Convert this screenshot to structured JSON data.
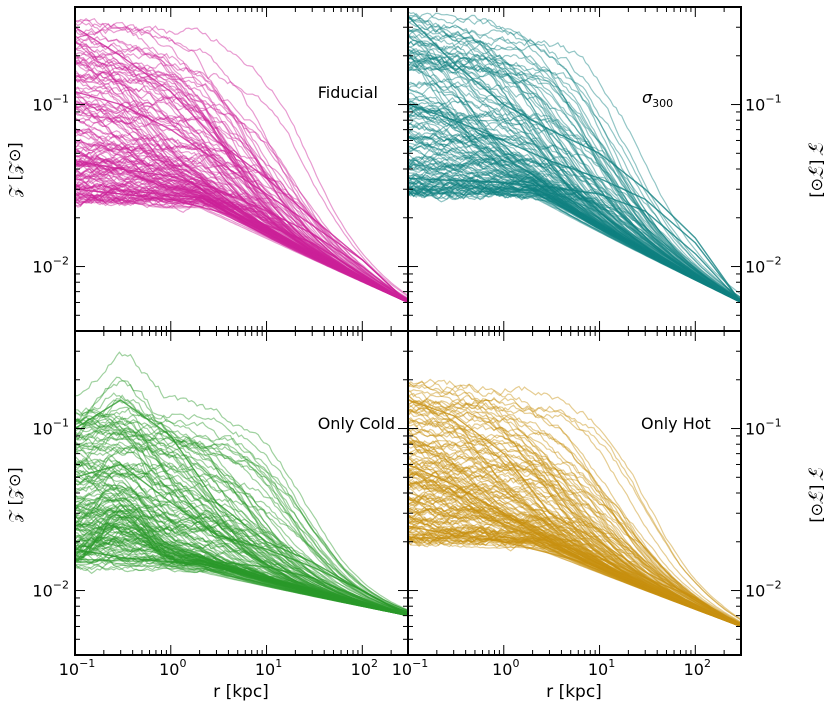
{
  "figure": {
    "xlabel": "r [kpc]",
    "ylabel_left": "𝒵 [𝒵⊙]",
    "ylabel_right": "𝒵 [𝒵⊙]"
  },
  "x_ticks": [
    {
      "base": "10",
      "exp": "−1",
      "value": 0.1
    },
    {
      "base": "10",
      "exp": "0",
      "value": 1
    },
    {
      "base": "10",
      "exp": "1",
      "value": 10
    },
    {
      "base": "10",
      "exp": "2",
      "value": 100
    }
  ],
  "y_ticks": [
    {
      "base": "10",
      "exp": "−1",
      "value": 0.1
    },
    {
      "base": "10",
      "exp": "−2",
      "value": 0.01
    }
  ],
  "chart_data": [
    {
      "type": "line",
      "panel": "top-left",
      "label": "Fiducial",
      "color": "#cc2199",
      "xscale": "log",
      "yscale": "log",
      "xlim": [
        0.1,
        300
      ],
      "ylim": [
        0.004,
        0.4
      ],
      "n_profiles": 150,
      "inner_range": [
        0.025,
        0.35
      ],
      "outer_value_at_300kpc": 0.006,
      "series": [
        {
          "x": [
            0.1,
            0.3,
            1,
            3,
            10,
            30,
            100,
            300
          ],
          "y": [
            0.3,
            0.2,
            0.12,
            0.06,
            0.035,
            0.02,
            0.011,
            0.006
          ]
        },
        {
          "x": [
            0.1,
            0.3,
            1,
            3,
            10,
            30,
            100,
            300
          ],
          "y": [
            0.12,
            0.1,
            0.07,
            0.045,
            0.028,
            0.018,
            0.011,
            0.006
          ]
        },
        {
          "x": [
            0.1,
            0.3,
            1,
            3,
            10,
            30,
            100,
            300
          ],
          "y": [
            0.045,
            0.04,
            0.036,
            0.03,
            0.022,
            0.016,
            0.01,
            0.006
          ]
        },
        {
          "x": [
            0.1,
            0.3,
            1,
            3,
            10,
            30,
            100,
            300
          ],
          "y": [
            0.03,
            0.028,
            0.026,
            0.022,
            0.018,
            0.014,
            0.009,
            0.006
          ]
        }
      ]
    },
    {
      "type": "line",
      "panel": "top-right",
      "label": "σ",
      "label_sub": "300",
      "color": "#0f8080",
      "xscale": "log",
      "yscale": "log",
      "xlim": [
        0.1,
        300
      ],
      "ylim": [
        0.004,
        0.4
      ],
      "n_profiles": 150,
      "inner_range": [
        0.028,
        0.4
      ],
      "outer_value_at_300kpc": 0.006,
      "series": [
        {
          "x": [
            0.1,
            0.3,
            1,
            3,
            10,
            30,
            100,
            300
          ],
          "y": [
            0.35,
            0.18,
            0.1,
            0.07,
            0.05,
            0.03,
            0.015,
            0.006
          ]
        },
        {
          "x": [
            0.1,
            0.3,
            1,
            3,
            10,
            30,
            100,
            300
          ],
          "y": [
            0.1,
            0.08,
            0.06,
            0.045,
            0.035,
            0.026,
            0.014,
            0.006
          ]
        },
        {
          "x": [
            0.1,
            0.3,
            1,
            3,
            10,
            30,
            100,
            300
          ],
          "y": [
            0.035,
            0.034,
            0.033,
            0.031,
            0.028,
            0.022,
            0.012,
            0.006
          ]
        }
      ]
    },
    {
      "type": "line",
      "panel": "bottom-left",
      "label": "Only Cold",
      "color": "#2a9a2a",
      "xscale": "log",
      "yscale": "log",
      "xlim": [
        0.1,
        300
      ],
      "ylim": [
        0.004,
        0.4
      ],
      "n_profiles": 150,
      "inner_range": [
        0.014,
        0.15
      ],
      "outer_value_at_300kpc": 0.007,
      "series": [
        {
          "x": [
            0.1,
            0.3,
            1,
            3,
            10,
            30,
            100,
            300
          ],
          "y": [
            0.1,
            0.15,
            0.09,
            0.035,
            0.02,
            0.015,
            0.01,
            0.007
          ]
        },
        {
          "x": [
            0.1,
            0.3,
            1,
            3,
            10,
            30,
            100,
            300
          ],
          "y": [
            0.05,
            0.06,
            0.035,
            0.022,
            0.018,
            0.014,
            0.01,
            0.007
          ]
        },
        {
          "x": [
            0.1,
            0.3,
            1,
            3,
            10,
            30,
            100,
            300
          ],
          "y": [
            0.018,
            0.016,
            0.015,
            0.015,
            0.014,
            0.012,
            0.009,
            0.007
          ]
        }
      ]
    },
    {
      "type": "line",
      "panel": "bottom-right",
      "label": "Only Hot",
      "color": "#c89010",
      "xscale": "log",
      "yscale": "log",
      "xlim": [
        0.1,
        300
      ],
      "ylim": [
        0.004,
        0.4
      ],
      "n_profiles": 150,
      "inner_range": [
        0.02,
        0.2
      ],
      "outer_value_at_300kpc": 0.006,
      "series": [
        {
          "x": [
            0.1,
            0.3,
            1,
            3,
            10,
            30,
            100,
            300
          ],
          "y": [
            0.15,
            0.12,
            0.07,
            0.03,
            0.02,
            0.013,
            0.009,
            0.006
          ]
        },
        {
          "x": [
            0.1,
            0.3,
            1,
            3,
            10,
            30,
            100,
            300
          ],
          "y": [
            0.06,
            0.045,
            0.03,
            0.02,
            0.016,
            0.012,
            0.009,
            0.006
          ]
        },
        {
          "x": [
            0.1,
            0.3,
            1,
            3,
            10,
            30,
            100,
            300
          ],
          "y": [
            0.025,
            0.022,
            0.02,
            0.017,
            0.014,
            0.011,
            0.008,
            0.006
          ]
        }
      ]
    }
  ]
}
